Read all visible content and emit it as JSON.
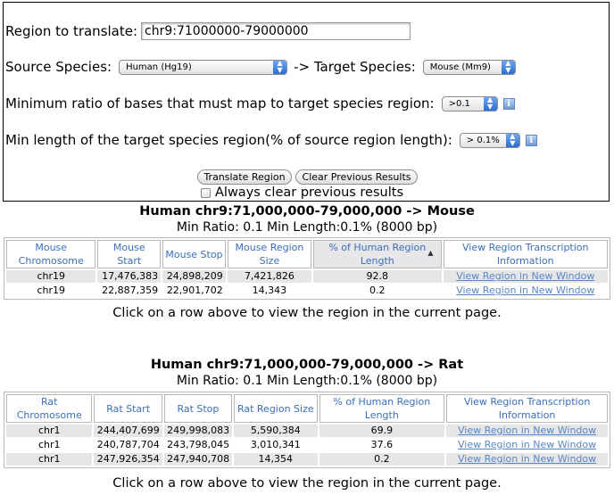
{
  "form": {
    "region_label": "Region to translate:",
    "region_value": "chr9:71000000-79000000",
    "source_label": "Source Species:",
    "source_value": "Human (Hg19)",
    "arrow_text": "-> Target Species:",
    "target_value": "Mouse (Mm9)",
    "min_ratio_label": "Minimum ratio of bases that must map to target species region:",
    "min_ratio_value": ">0.1",
    "min_length_label": "Min length of the target species region(% of source region length):",
    "min_length_value": "> 0.1%",
    "translate_button": "Translate Region",
    "clear_button": "Clear Previous Results",
    "always_clear_label": "Always clear previous results"
  },
  "results": [
    {
      "title": "Human chr9:71,000,000-79,000,000 -> Mouse",
      "subtitle": "Min Ratio: 0.1 Min Length:0.1% (8000 bp)",
      "headers": [
        "Mouse Chromosome",
        "Mouse Start",
        "Mouse Stop",
        "Mouse Region Size",
        "% of Human Region Length",
        "View Region Transcription Information"
      ],
      "rows": [
        [
          "chr19",
          "17,476,383",
          "24,898,209",
          "7,421,826",
          "92.8",
          "View Region in New Window"
        ],
        [
          "chr19",
          "22,887,359",
          "22,901,702",
          "14,343",
          "0.2",
          "View Region in New Window"
        ]
      ],
      "note": "Click on a row above to view the region in the current page."
    },
    {
      "title": "Human chr9:71,000,000-79,000,000 -> Rat",
      "subtitle": "Min Ratio: 0.1 Min Length:0.1% (8000 bp)",
      "headers": [
        "Rat Chromosome",
        "Rat Start",
        "Rat Stop",
        "Rat Region Size",
        "% of Human Region Length",
        "View Region Transcription Information"
      ],
      "rows": [
        [
          "chr1",
          "244,407,699",
          "249,998,083",
          "5,590,384",
          "69.9",
          "View Region in New Window"
        ],
        [
          "chr1",
          "240,787,704",
          "243,798,045",
          "3,010,341",
          "37.6",
          "View Region in New Window"
        ],
        [
          "chr1",
          "247,926,354",
          "247,940,708",
          "14,354",
          "0.2",
          "View Region in New Window"
        ]
      ],
      "note": "Click on a row above to view the region in the current page."
    }
  ]
}
